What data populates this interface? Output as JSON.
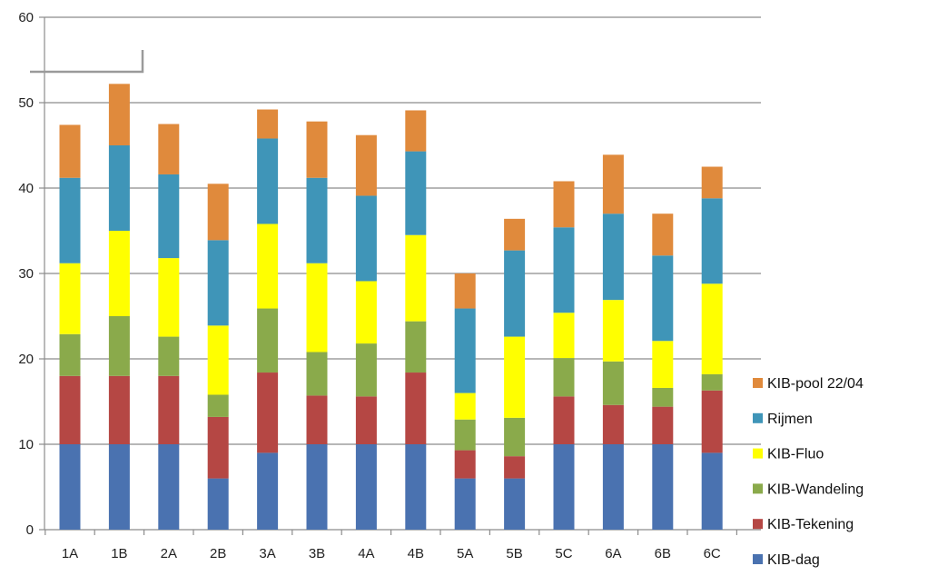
{
  "chart_data": {
    "type": "bar",
    "stacked": true,
    "categories": [
      "1A",
      "1B",
      "2A",
      "2B",
      "3A",
      "3B",
      "4A",
      "4B",
      "5A",
      "5B",
      "5C",
      "6A",
      "6B",
      "6C"
    ],
    "ylim": [
      0,
      60
    ],
    "yticks": [
      0,
      10,
      20,
      30,
      40,
      50,
      60
    ],
    "grid": true,
    "legend_position": "right",
    "series": [
      {
        "name": "KIB-dag",
        "color": "#4A72B0",
        "values": [
          10,
          10,
          10,
          6,
          9,
          10,
          10,
          10,
          6,
          6,
          10,
          10,
          10,
          9
        ]
      },
      {
        "name": "KIB-Tekening",
        "color": "#B54744",
        "values": [
          8,
          8,
          8,
          7.2,
          9.4,
          5.7,
          5.6,
          8.4,
          3.3,
          2.6,
          5.6,
          4.6,
          4.4,
          7.3
        ]
      },
      {
        "name": "KIB-Wandeling",
        "color": "#8AAA4B",
        "values": [
          4.9,
          7,
          4.6,
          2.6,
          7.5,
          5.1,
          6.2,
          6,
          3.6,
          4.5,
          4.5,
          5.1,
          2.2,
          1.9
        ]
      },
      {
        "name": "KIB-Fluo",
        "color": "#FFFF00",
        "values": [
          8.3,
          10,
          9.2,
          8.1,
          9.9,
          10.4,
          7.3,
          10.1,
          3.1,
          9.5,
          5.3,
          7.2,
          5.5,
          10.6
        ]
      },
      {
        "name": "Rijmen",
        "color": "#3F95B8",
        "values": [
          10,
          10,
          9.8,
          10,
          10,
          10,
          10,
          9.8,
          9.9,
          10.1,
          10,
          10.1,
          10,
          10
        ]
      },
      {
        "name": "KIB-pool 22/04",
        "color": "#E08A3C",
        "values": [
          6.2,
          7.2,
          5.9,
          6.6,
          3.4,
          6.6,
          7.1,
          4.8,
          4.1,
          3.7,
          5.4,
          6.9,
          4.9,
          3.7
        ]
      }
    ]
  }
}
